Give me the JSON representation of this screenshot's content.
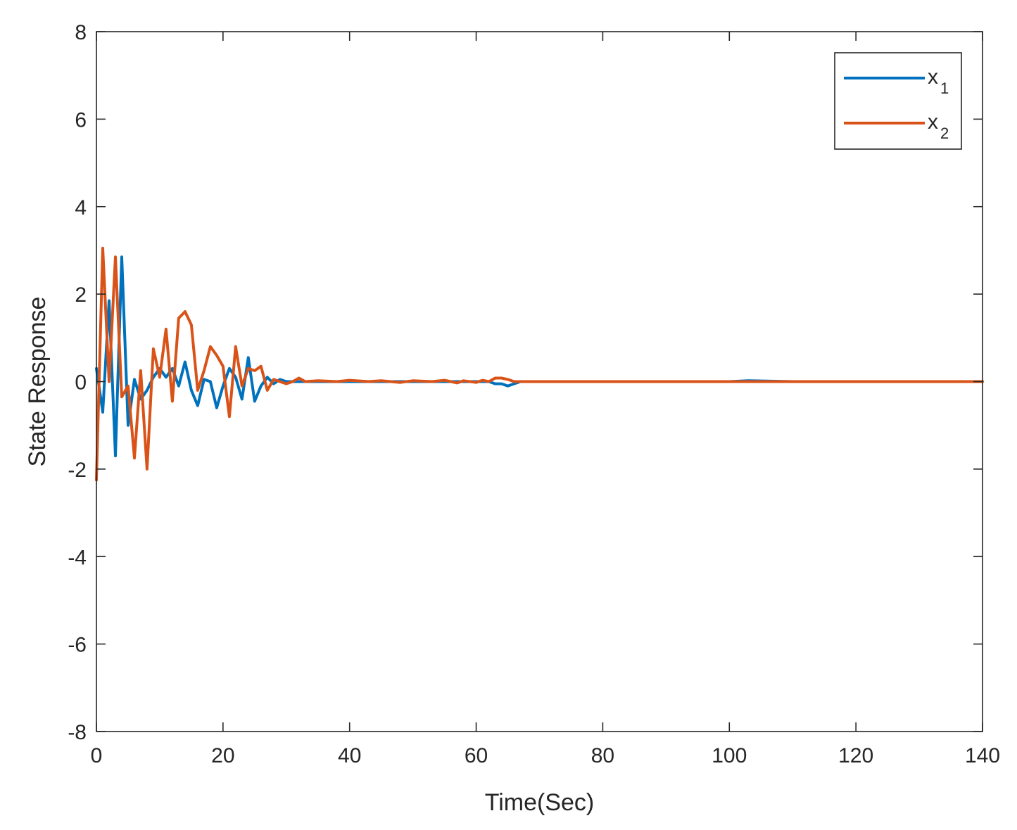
{
  "chart_data": {
    "type": "line",
    "xlabel": "Time(Sec)",
    "ylabel": "State Response",
    "xlim": [
      0,
      140
    ],
    "ylim": [
      -8,
      8
    ],
    "xticks": [
      0,
      20,
      40,
      60,
      80,
      100,
      120,
      140
    ],
    "yticks": [
      -8,
      -6,
      -4,
      -2,
      0,
      2,
      4,
      6,
      8
    ],
    "grid": false,
    "legend_position": "top-right",
    "series": [
      {
        "name": "x",
        "subscript": "1",
        "color": "#0072BD",
        "x": [
          0,
          1,
          2,
          3,
          4,
          5,
          6,
          7,
          8,
          9,
          10,
          11,
          12,
          13,
          14,
          15,
          16,
          17,
          18,
          19,
          20,
          21,
          22,
          23,
          24,
          25,
          26,
          27,
          28,
          29,
          30,
          32,
          35,
          40,
          45,
          50,
          55,
          60,
          62,
          63,
          64,
          65,
          66,
          67,
          68,
          70,
          80,
          90,
          100,
          103,
          110,
          120,
          130,
          140
        ],
        "y": [
          0.3,
          -0.7,
          1.85,
          -1.7,
          2.85,
          -1.0,
          0.05,
          -0.4,
          -0.2,
          0.1,
          0.3,
          0.1,
          0.3,
          -0.1,
          0.45,
          -0.2,
          -0.55,
          0.05,
          0.0,
          -0.6,
          -0.1,
          0.3,
          0.1,
          -0.4,
          0.55,
          -0.45,
          -0.1,
          0.1,
          -0.05,
          0.05,
          0.0,
          0.0,
          0.0,
          0.0,
          0.0,
          0.0,
          0.0,
          0.0,
          0.0,
          -0.05,
          -0.05,
          -0.1,
          -0.05,
          0.0,
          0.0,
          0.0,
          0.0,
          0.0,
          0.0,
          0.02,
          0.0,
          0.0,
          0.0,
          0.0
        ]
      },
      {
        "name": "x",
        "subscript": "2",
        "color": "#D95319",
        "x": [
          0,
          1,
          2,
          3,
          4,
          5,
          6,
          7,
          8,
          9,
          10,
          11,
          12,
          13,
          14,
          15,
          16,
          17,
          18,
          19,
          20,
          21,
          22,
          23,
          24,
          25,
          26,
          27,
          28,
          29,
          30,
          31,
          32,
          33,
          35,
          38,
          40,
          43,
          45,
          48,
          50,
          53,
          55,
          57,
          58,
          60,
          61,
          62,
          63,
          64,
          65,
          66,
          67,
          68,
          70,
          80,
          90,
          100,
          110,
          120,
          130,
          140
        ],
        "y": [
          -2.25,
          3.05,
          0.0,
          2.85,
          -0.35,
          -0.1,
          -1.75,
          0.25,
          -2.0,
          0.75,
          0.1,
          1.2,
          -0.45,
          1.45,
          1.6,
          1.3,
          -0.2,
          0.25,
          0.8,
          0.6,
          0.35,
          -0.8,
          0.8,
          -0.1,
          0.3,
          0.25,
          0.35,
          -0.2,
          0.05,
          0.0,
          -0.05,
          0.0,
          0.08,
          0.0,
          0.02,
          0.0,
          0.03,
          0.0,
          0.02,
          -0.02,
          0.02,
          0.0,
          0.03,
          -0.03,
          0.02,
          -0.02,
          0.03,
          0.0,
          0.08,
          0.08,
          0.05,
          0.0,
          0.0,
          0.0,
          0.0,
          0.0,
          0.0,
          0.0,
          0.0,
          0.0,
          0.0,
          0.0
        ]
      }
    ]
  }
}
